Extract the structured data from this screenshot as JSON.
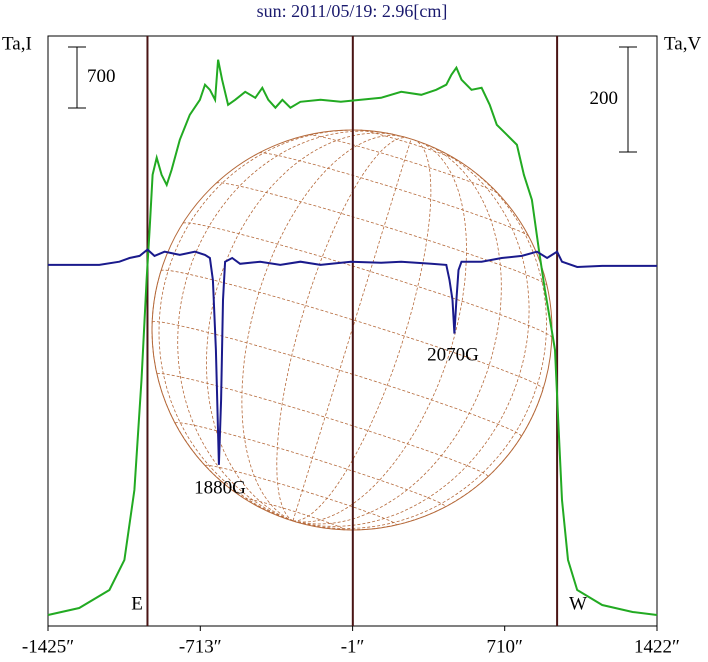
{
  "chart_data": {
    "type": "line",
    "title": "sun: 2011/05/19: 2.96[cm]",
    "ylabel": "Ta,I",
    "y2label": "Ta,V",
    "xlim": [
      -1425,
      1422
    ],
    "xticks": [
      {
        "value": -1425,
        "label": "-1425″"
      },
      {
        "value": -713,
        "label": "-713″"
      },
      {
        "value": -1,
        "label": "-1″"
      },
      {
        "value": 710,
        "label": "710″"
      },
      {
        "value": 1422,
        "label": "1422″"
      }
    ],
    "ylim": [
      0,
      6770
    ],
    "y2lim": [
      -688,
      436
    ],
    "vlines": [
      -960,
      0,
      955
    ],
    "scale_bars": [
      {
        "label": 700,
        "axis": "y"
      },
      {
        "label": 200,
        "axis": "y2"
      }
    ],
    "annotations": [
      "1880G",
      "2070G",
      "E",
      "W"
    ],
    "series": [
      {
        "name": "Ta,I",
        "color": "#22aa22",
        "x": [
          -1425,
          -1279,
          -1138,
          -1068,
          -1021,
          -988,
          -964,
          -950,
          -936,
          -917,
          -894,
          -870,
          -847,
          -809,
          -762,
          -715,
          -691,
          -668,
          -644,
          -630,
          -611,
          -583,
          -550,
          -503,
          -456,
          -423,
          -395,
          -362,
          -329,
          -292,
          -245,
          -151,
          -56,
          38,
          132,
          226,
          320,
          390,
          437,
          461,
          484,
          508,
          555,
          602,
          640,
          673,
          720,
          767,
          800,
          837,
          870,
          898,
          922,
          945,
          960,
          978,
          1006,
          1049,
          1166,
          1308,
          1422
        ],
        "values": [
          126,
          207,
          413,
          758,
          1561,
          2824,
          3972,
          4546,
          5177,
          5373,
          5177,
          5062,
          5234,
          5579,
          5866,
          6038,
          6211,
          6153,
          6038,
          6498,
          6268,
          5981,
          6038,
          6130,
          6061,
          6176,
          6038,
          5947,
          6038,
          5947,
          6015,
          6038,
          6015,
          6038,
          6061,
          6130,
          6095,
          6153,
          6211,
          6325,
          6406,
          6268,
          6153,
          6176,
          5981,
          5751,
          5637,
          5522,
          5177,
          4890,
          4316,
          3857,
          3513,
          3168,
          2365,
          1446,
          758,
          413,
          241,
          161,
          126
        ]
      },
      {
        "name": "Ta,V",
        "color": "#1a1a8c",
        "axis": "y2",
        "x": [
          -1425,
          -1185,
          -1091,
          -1044,
          -997,
          -960,
          -927,
          -880,
          -809,
          -738,
          -691,
          -668,
          -654,
          -640,
          -626,
          -616,
          -607,
          -597,
          -564,
          -527,
          -433,
          -339,
          -245,
          -151,
          -9,
          132,
          226,
          367,
          437,
          452,
          466,
          475,
          484,
          494,
          508,
          602,
          696,
          790,
          861,
          908,
          931,
          955,
          978,
          1049,
          1166,
          1422
        ],
        "values": [
          0,
          0,
          6,
          13,
          17,
          29,
          17,
          25,
          19,
          25,
          19,
          13,
          -29,
          -162,
          -381,
          -257,
          -67,
          6,
          13,
          2,
          6,
          0,
          6,
          0,
          6,
          4,
          6,
          2,
          0,
          -29,
          -67,
          -131,
          -67,
          -10,
          6,
          6,
          13,
          17,
          25,
          13,
          19,
          25,
          6,
          -4,
          -2,
          -2
        ]
      }
    ]
  }
}
